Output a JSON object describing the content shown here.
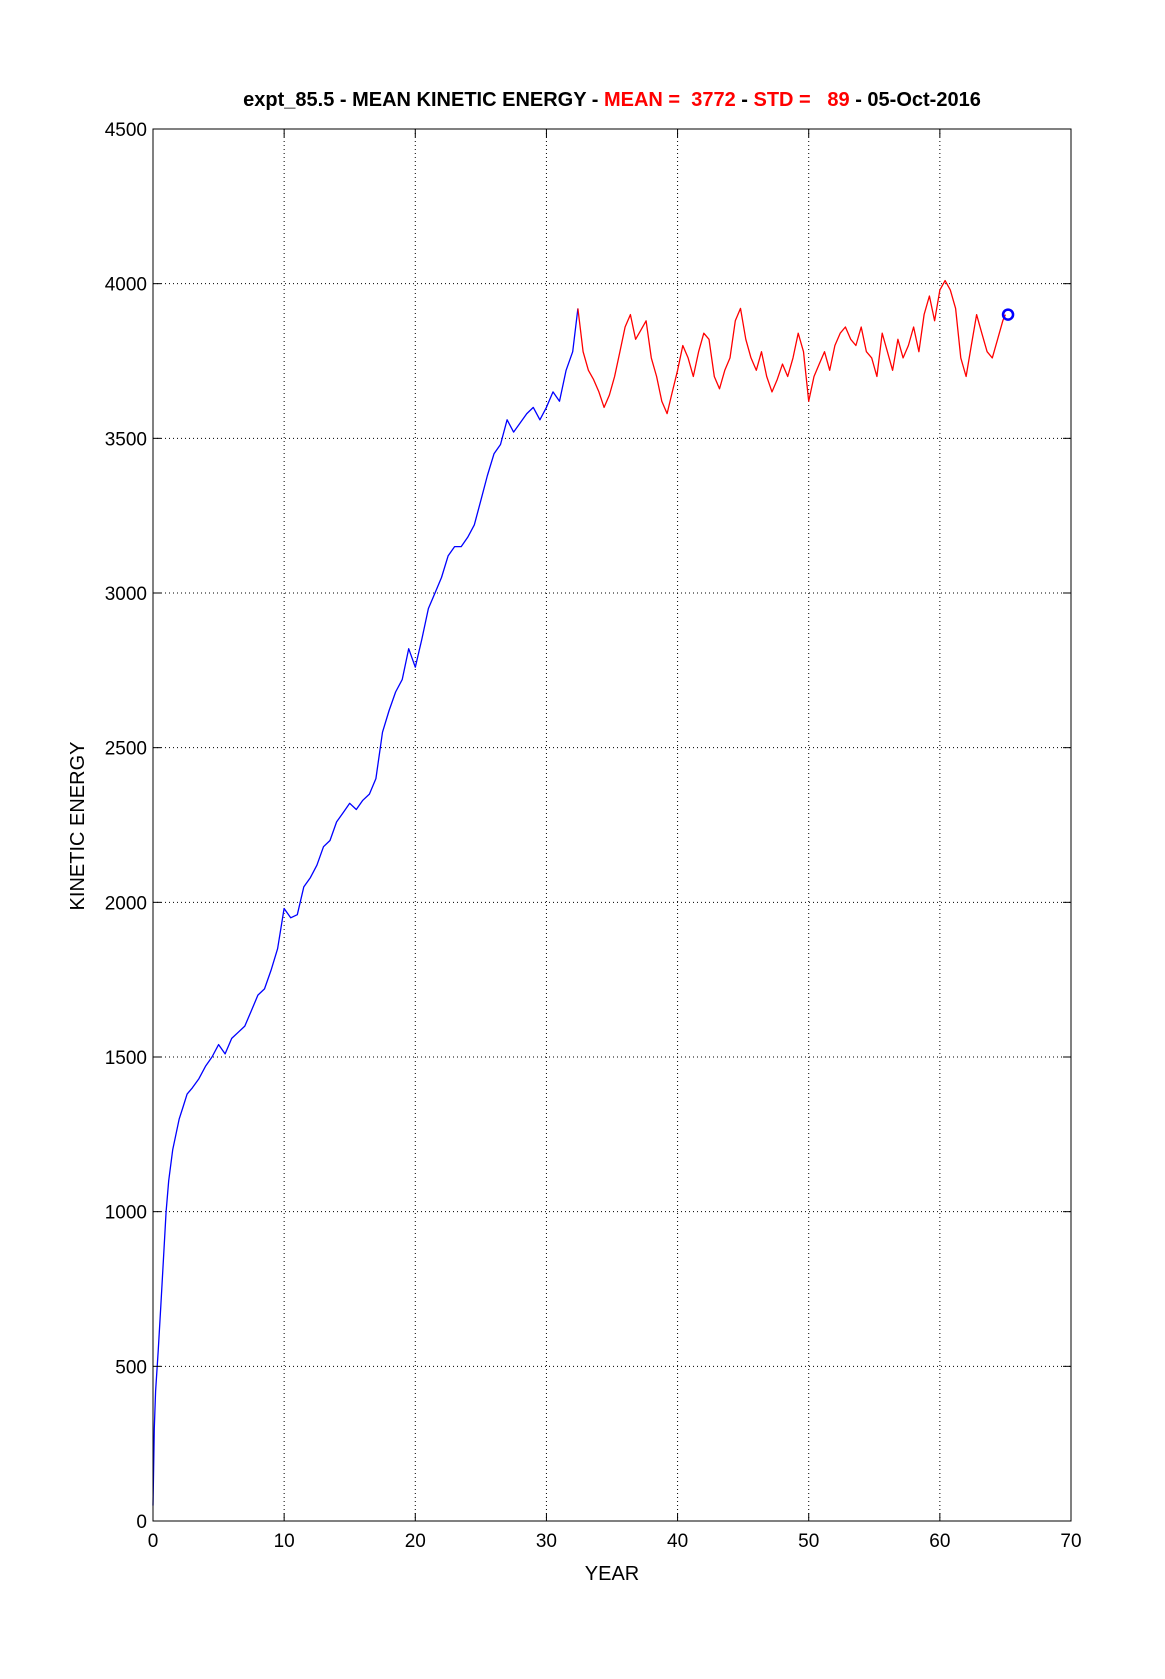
{
  "chart_data": {
    "type": "line",
    "title_parts": [
      {
        "text": "expt_85.5 - MEAN KINETIC ENERGY - ",
        "color": "#000000"
      },
      {
        "text": "MEAN =  3772",
        "color": "#ff0000"
      },
      {
        "text": " - ",
        "color": "#000000"
      },
      {
        "text": "STD =   89",
        "color": "#ff0000"
      },
      {
        "text": " - 05-Oct-2016",
        "color": "#000000"
      }
    ],
    "xlabel": "YEAR",
    "ylabel": "KINETIC ENERGY",
    "xlim": [
      0,
      70
    ],
    "ylim": [
      0,
      4500
    ],
    "xticks": [
      0,
      10,
      20,
      30,
      40,
      50,
      60,
      70
    ],
    "yticks": [
      0,
      500,
      1000,
      1500,
      2000,
      2500,
      3000,
      3500,
      4000,
      4500
    ],
    "grid": true,
    "series": [
      {
        "color": "#0000ff",
        "x": [
          0,
          0.1,
          0.2,
          0.4,
          0.6,
          0.8,
          1.0,
          1.2,
          1.5,
          1.8,
          2.0,
          2.3,
          2.6,
          3.0,
          3.5,
          4.0,
          4.5,
          5.0,
          5.5,
          6.0,
          6.5,
          7.0,
          7.5,
          8.0,
          8.5,
          9.0,
          9.5,
          10.0,
          10.5,
          11.0,
          11.5,
          12.0,
          12.5,
          13.0,
          13.5,
          14.0,
          14.5,
          15.0,
          15.5,
          16.0,
          16.5,
          17.0,
          17.5,
          18.0,
          18.5,
          19.0,
          19.5,
          20.0,
          20.5,
          21.0,
          21.5,
          22.0,
          22.5,
          23.0,
          23.5,
          24.0,
          24.5,
          25.0,
          25.5,
          26.0,
          26.5,
          27.0,
          27.5,
          28.0,
          28.5,
          29.0,
          29.5,
          30.0,
          30.5,
          31.0,
          31.5,
          32.0,
          32.4
        ],
        "y": [
          50,
          300,
          420,
          550,
          700,
          850,
          1000,
          1100,
          1200,
          1260,
          1300,
          1340,
          1380,
          1400,
          1430,
          1470,
          1500,
          1540,
          1510,
          1560,
          1580,
          1600,
          1650,
          1700,
          1720,
          1780,
          1850,
          1980,
          1950,
          1960,
          2050,
          2080,
          2120,
          2180,
          2200,
          2260,
          2290,
          2320,
          2300,
          2330,
          2350,
          2400,
          2550,
          2620,
          2680,
          2720,
          2820,
          2760,
          2850,
          2950,
          3000,
          3050,
          3120,
          3150,
          3150,
          3180,
          3220,
          3300,
          3380,
          3450,
          3480,
          3560,
          3520,
          3550,
          3580,
          3600,
          3560,
          3600,
          3650,
          3620,
          3720,
          3780,
          3920
        ]
      },
      {
        "color": "#ff0000",
        "x": [
          32.4,
          32.8,
          33.2,
          33.6,
          34.0,
          34.4,
          34.8,
          35.2,
          35.6,
          36.0,
          36.4,
          36.8,
          37.2,
          37.6,
          38.0,
          38.4,
          38.8,
          39.2,
          39.6,
          40.0,
          40.4,
          40.8,
          41.2,
          41.6,
          42.0,
          42.4,
          42.8,
          43.2,
          43.6,
          44.0,
          44.4,
          44.8,
          45.2,
          45.6,
          46.0,
          46.4,
          46.8,
          47.2,
          47.6,
          48.0,
          48.4,
          48.8,
          49.2,
          49.6,
          50.0,
          50.4,
          50.8,
          51.2,
          51.6,
          52.0,
          52.4,
          52.8,
          53.2,
          53.6,
          54.0,
          54.4,
          54.8,
          55.2,
          55.6,
          56.0,
          56.4,
          56.8,
          57.2,
          57.6,
          58.0,
          58.4,
          58.8,
          59.2,
          59.6,
          60.0,
          60.4,
          60.8,
          61.2,
          61.6,
          62.0,
          62.4,
          62.8,
          63.2,
          63.6,
          64.0,
          64.4,
          64.8,
          65.0
        ],
        "y": [
          3920,
          3780,
          3720,
          3690,
          3650,
          3600,
          3640,
          3700,
          3780,
          3860,
          3900,
          3820,
          3850,
          3880,
          3760,
          3700,
          3620,
          3580,
          3650,
          3720,
          3800,
          3760,
          3700,
          3780,
          3840,
          3820,
          3700,
          3660,
          3720,
          3760,
          3880,
          3920,
          3820,
          3760,
          3720,
          3780,
          3700,
          3650,
          3690,
          3740,
          3700,
          3760,
          3840,
          3780,
          3620,
          3700,
          3740,
          3780,
          3720,
          3800,
          3840,
          3860,
          3820,
          3800,
          3860,
          3780,
          3760,
          3700,
          3840,
          3780,
          3720,
          3820,
          3760,
          3800,
          3860,
          3780,
          3900,
          3960,
          3880,
          3980,
          4010,
          3980,
          3920,
          3760,
          3700,
          3800,
          3900,
          3840,
          3780,
          3760,
          3820,
          3880,
          3900
        ]
      }
    ],
    "end_marker": {
      "x": 65.2,
      "y": 3900,
      "color": "#0000ff"
    }
  }
}
